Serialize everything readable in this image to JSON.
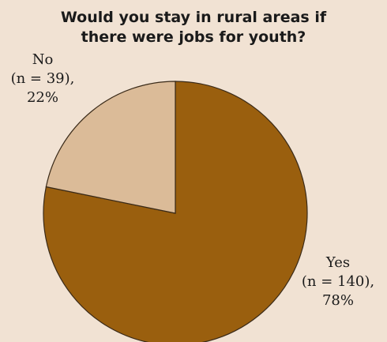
{
  "chart_data": {
    "type": "pie",
    "title": [
      "Would you stay in rural areas if",
      "there were jobs for youth?"
    ],
    "slices": [
      {
        "label": "Yes",
        "n_text": "(n = 140),",
        "pct_text": "78%",
        "value": 140,
        "percent": 78,
        "color": "#9a5f0e"
      },
      {
        "label": "No",
        "n_text": "(n = 39),",
        "pct_text": "22%",
        "value": 39,
        "percent": 22,
        "color": "#dbbb98"
      }
    ],
    "start_angle": "12 o'clock",
    "direction": "clockwise"
  }
}
